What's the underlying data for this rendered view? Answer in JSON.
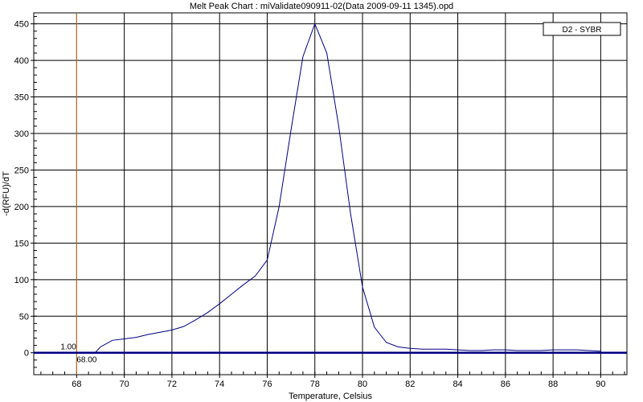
{
  "chart_data": {
    "type": "line",
    "title": "Melt Peak Chart : miValidate090911-02(Data 2009-09-11 1345).opd",
    "xlabel": "Temperature, Celsius",
    "ylabel": "-d(RFU)/dT",
    "xlim": [
      66.2,
      91.1
    ],
    "ylim": [
      -30,
      465
    ],
    "xticks": [
      68,
      70,
      72,
      74,
      76,
      78,
      80,
      82,
      84,
      86,
      88,
      90
    ],
    "yticks": [
      0,
      50,
      100,
      150,
      200,
      250,
      300,
      350,
      400,
      450
    ],
    "grid": true,
    "legend_position": "top-right",
    "series": [
      {
        "name": "D2 - SYBR",
        "color": "#000080",
        "x": [
          68.8,
          69.0,
          69.5,
          70.0,
          70.5,
          71.0,
          71.5,
          72.0,
          72.5,
          73.0,
          73.5,
          74.0,
          74.5,
          75.0,
          75.5,
          76.0,
          76.5,
          77.0,
          77.5,
          78.0,
          78.5,
          79.0,
          79.5,
          80.0,
          80.5,
          81.0,
          81.5,
          82.0,
          82.5,
          83.0,
          83.5,
          84.0,
          84.5,
          85.0,
          85.5,
          86.0,
          86.5,
          87.0,
          87.5,
          88.0,
          88.5,
          89.0,
          89.5,
          90.0
        ],
        "y": [
          1,
          8,
          17,
          19,
          21,
          25,
          28,
          31,
          36,
          45,
          55,
          67,
          80,
          93,
          105,
          127,
          200,
          305,
          405,
          450,
          410,
          310,
          190,
          90,
          35,
          14,
          8,
          6,
          5,
          5,
          5,
          4,
          3,
          3,
          4,
          4,
          3,
          3,
          3,
          4,
          4,
          4,
          3,
          2
        ]
      }
    ],
    "baseline": {
      "y": 0,
      "color": "#000080"
    },
    "threshold": {
      "x": 68.0,
      "x_label": "68.00",
      "y_label": "1.00",
      "color": "#c87830"
    }
  }
}
